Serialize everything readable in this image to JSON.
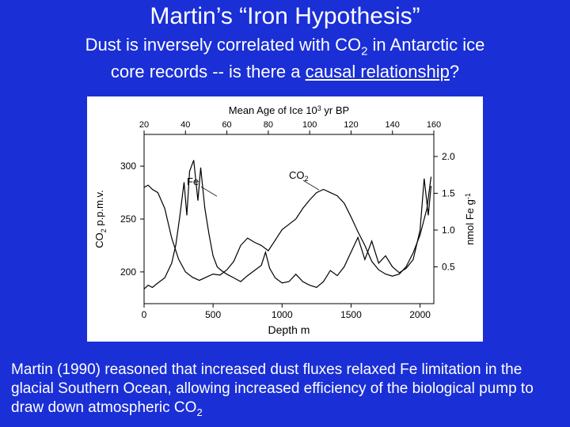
{
  "slide": {
    "background_color": "#1a2fd6",
    "text_color": "#ffffff"
  },
  "title": {
    "text": "Martin’s “Iron Hypothesis”",
    "fontsize": 30
  },
  "subtitle": {
    "line1_pre": "Dust is inversely correlated with CO",
    "line1_sub": "2",
    "line1_post": " in Antarctic ice",
    "line2_pre": "core records -- is there a ",
    "line2_underline": "causal relationship",
    "line2_post": "?",
    "fontsize": 22
  },
  "caption": {
    "pre": "Martin (1990) reasoned that increased dust fluxes relaxed Fe limitation in the glacial Southern Ocean, allowing increased efficiency of the biological pump to draw down atmospheric CO",
    "sub": "2",
    "fontsize": 19
  },
  "chart": {
    "type": "dual-axis-line",
    "background_color": "#ffffff",
    "line_color": "#000000",
    "line_width": 1.2,
    "frame_color": "#000000",
    "top_axis": {
      "label_html": "Mean Age of Ice 10<tspan baseline-shift='4' font-size='9'>3</tspan> yr BP",
      "label": "Mean Age of Ice 10^3 yr BP",
      "ticks": [
        20,
        40,
        60,
        80,
        100,
        120,
        140,
        160
      ],
      "fontsize": 13,
      "tick_fontsize": 11
    },
    "bottom_axis": {
      "label": "Depth m",
      "ticks": [
        0,
        500,
        1000,
        1500,
        2000
      ],
      "range": [
        0,
        2100
      ],
      "fontsize": 14,
      "tick_fontsize": 12
    },
    "left_axis": {
      "label_html": "CO<tspan baseline-shift='-4' font-size='9'>2</tspan> p.p.m.v.",
      "label": "CO2 p.p.m.v.",
      "ticks": [
        200,
        250,
        300
      ],
      "range": [
        170,
        330
      ],
      "fontsize": 13,
      "tick_fontsize": 12
    },
    "right_axis": {
      "label_html": "nmol Fe g<tspan baseline-shift='4' font-size='9'>-1</tspan>",
      "label": "nmol Fe g-1",
      "ticks": [
        0.5,
        1.0,
        1.5,
        2.0
      ],
      "range": [
        0.0,
        2.3
      ],
      "fontsize": 13,
      "tick_fontsize": 12
    },
    "annotations": [
      {
        "text": "Fe",
        "x_depth": 310,
        "y_co2": 282
      },
      {
        "text": "CO",
        "sub": "2",
        "x_depth": 1050,
        "y_co2": 288
      }
    ],
    "series": {
      "co2": {
        "axis": "left",
        "points": [
          [
            0,
            280
          ],
          [
            30,
            282
          ],
          [
            60,
            278
          ],
          [
            100,
            275
          ],
          [
            150,
            260
          ],
          [
            200,
            232
          ],
          [
            250,
            212
          ],
          [
            300,
            200
          ],
          [
            350,
            195
          ],
          [
            400,
            192
          ],
          [
            450,
            195
          ],
          [
            500,
            198
          ],
          [
            550,
            197
          ],
          [
            600,
            202
          ],
          [
            650,
            210
          ],
          [
            700,
            225
          ],
          [
            750,
            232
          ],
          [
            800,
            228
          ],
          [
            850,
            225
          ],
          [
            900,
            220
          ],
          [
            950,
            230
          ],
          [
            1000,
            240
          ],
          [
            1050,
            245
          ],
          [
            1100,
            250
          ],
          [
            1150,
            260
          ],
          [
            1200,
            268
          ],
          [
            1250,
            275
          ],
          [
            1300,
            278
          ],
          [
            1350,
            275
          ],
          [
            1400,
            272
          ],
          [
            1450,
            265
          ],
          [
            1500,
            252
          ],
          [
            1550,
            238
          ],
          [
            1600,
            225
          ],
          [
            1650,
            210
          ],
          [
            1700,
            202
          ],
          [
            1750,
            198
          ],
          [
            1800,
            196
          ],
          [
            1850,
            198
          ],
          [
            1900,
            205
          ],
          [
            1950,
            218
          ],
          [
            2000,
            235
          ],
          [
            2050,
            260
          ],
          [
            2080,
            290
          ]
        ]
      },
      "fe": {
        "axis": "right",
        "points": [
          [
            0,
            0.2
          ],
          [
            30,
            0.25
          ],
          [
            60,
            0.22
          ],
          [
            100,
            0.28
          ],
          [
            150,
            0.35
          ],
          [
            200,
            0.55
          ],
          [
            230,
            0.8
          ],
          [
            260,
            1.2
          ],
          [
            290,
            1.65
          ],
          [
            310,
            1.2
          ],
          [
            330,
            1.8
          ],
          [
            360,
            1.95
          ],
          [
            390,
            1.4
          ],
          [
            410,
            1.85
          ],
          [
            440,
            1.3
          ],
          [
            470,
            0.95
          ],
          [
            500,
            0.65
          ],
          [
            530,
            0.5
          ],
          [
            560,
            0.45
          ],
          [
            600,
            0.4
          ],
          [
            650,
            0.35
          ],
          [
            700,
            0.3
          ],
          [
            750,
            0.38
          ],
          [
            800,
            0.45
          ],
          [
            850,
            0.52
          ],
          [
            880,
            0.7
          ],
          [
            910,
            0.48
          ],
          [
            950,
            0.35
          ],
          [
            1000,
            0.28
          ],
          [
            1050,
            0.3
          ],
          [
            1100,
            0.4
          ],
          [
            1150,
            0.3
          ],
          [
            1200,
            0.25
          ],
          [
            1250,
            0.22
          ],
          [
            1300,
            0.3
          ],
          [
            1350,
            0.45
          ],
          [
            1400,
            0.38
          ],
          [
            1450,
            0.5
          ],
          [
            1500,
            0.7
          ],
          [
            1550,
            0.9
          ],
          [
            1600,
            0.6
          ],
          [
            1650,
            0.85
          ],
          [
            1700,
            0.55
          ],
          [
            1750,
            0.65
          ],
          [
            1800,
            0.5
          ],
          [
            1850,
            0.42
          ],
          [
            1900,
            0.48
          ],
          [
            1950,
            0.6
          ],
          [
            2000,
            1.0
          ],
          [
            2030,
            1.7
          ],
          [
            2060,
            1.2
          ],
          [
            2080,
            1.6
          ]
        ]
      }
    }
  }
}
